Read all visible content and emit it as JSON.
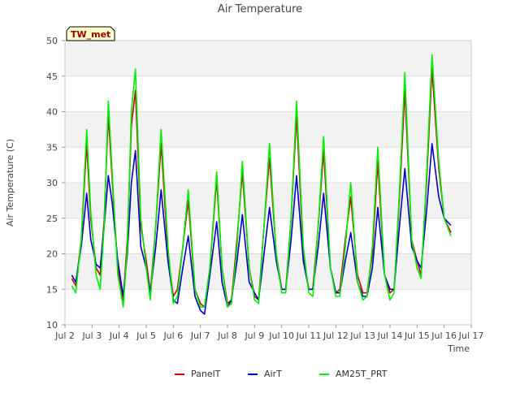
{
  "chart_data": {
    "type": "line",
    "title": "Air Temperature",
    "xlabel": "Time",
    "ylabel": "Air Temperature (C)",
    "station_label": "TW_met",
    "ylim": [
      10,
      50
    ],
    "xlim": [
      2,
      17
    ],
    "yticks": [
      10,
      15,
      20,
      25,
      30,
      35,
      40,
      45,
      50
    ],
    "xticks": [
      {
        "v": 2,
        "label": "Jul 2"
      },
      {
        "v": 3,
        "label": "Jul 3"
      },
      {
        "v": 4,
        "label": "Jul 4"
      },
      {
        "v": 5,
        "label": "Jul 5"
      },
      {
        "v": 6,
        "label": "Jul 6"
      },
      {
        "v": 7,
        "label": "Jul 7"
      },
      {
        "v": 8,
        "label": "Jul 8"
      },
      {
        "v": 9,
        "label": "Jul 9"
      },
      {
        "v": 10,
        "label": "Jul 10"
      },
      {
        "v": 11,
        "label": "Jul 11"
      },
      {
        "v": 12,
        "label": "Jul 12"
      },
      {
        "v": 13,
        "label": "Jul 13"
      },
      {
        "v": 14,
        "label": "Jul 14"
      },
      {
        "v": 15,
        "label": "Jul 15"
      },
      {
        "v": 16,
        "label": "Jul 16"
      },
      {
        "v": 17,
        "label": "Jul 17"
      }
    ],
    "grid": true,
    "legend_position": "bottom",
    "series": [
      {
        "name": "PanelT",
        "color": "#cc0000",
        "x": [
          2.25,
          2.4,
          2.6,
          2.8,
          2.95,
          3.15,
          3.3,
          3.45,
          3.6,
          3.75,
          3.95,
          4.15,
          4.3,
          4.45,
          4.6,
          4.8,
          5.0,
          5.15,
          5.35,
          5.55,
          5.8,
          6.0,
          6.15,
          6.35,
          6.55,
          6.8,
          7.0,
          7.15,
          7.35,
          7.6,
          7.8,
          8.0,
          8.15,
          8.35,
          8.55,
          8.8,
          9.0,
          9.15,
          9.35,
          9.55,
          9.8,
          10.0,
          10.15,
          10.35,
          10.55,
          10.8,
          11.0,
          11.15,
          11.35,
          11.55,
          11.8,
          12.0,
          12.15,
          12.35,
          12.55,
          12.8,
          13.0,
          13.15,
          13.35,
          13.55,
          13.8,
          14.0,
          14.15,
          14.35,
          14.55,
          14.8,
          15.0,
          15.15,
          15.35,
          15.55,
          15.8,
          16.0,
          16.25
        ],
        "values": [
          16.5,
          15.5,
          22,
          35.5,
          25,
          18,
          17,
          25,
          39.5,
          30,
          18,
          13.5,
          22,
          38,
          43,
          24,
          19,
          14.5,
          24,
          35.5,
          20,
          14,
          15,
          21,
          27.5,
          15,
          13,
          12.5,
          18,
          30.5,
          18,
          13,
          13.5,
          22,
          31.5,
          18,
          14,
          13.5,
          24,
          33.5,
          20,
          15,
          15,
          25,
          39.5,
          20,
          15,
          15,
          24,
          34.5,
          18,
          14.5,
          15,
          22,
          28,
          17,
          14.5,
          14.5,
          20,
          33,
          17,
          14.5,
          15,
          28,
          43,
          22,
          19,
          17,
          30,
          46,
          32,
          25,
          23
        ]
      },
      {
        "name": "AirT",
        "color": "#0000cc",
        "x": [
          2.25,
          2.4,
          2.6,
          2.8,
          2.95,
          3.15,
          3.3,
          3.45,
          3.6,
          3.75,
          3.95,
          4.15,
          4.3,
          4.45,
          4.6,
          4.8,
          5.0,
          5.15,
          5.35,
          5.55,
          5.8,
          6.0,
          6.15,
          6.35,
          6.55,
          6.8,
          7.0,
          7.15,
          7.35,
          7.6,
          7.8,
          8.0,
          8.15,
          8.35,
          8.55,
          8.8,
          9.0,
          9.15,
          9.35,
          9.55,
          9.8,
          10.0,
          10.15,
          10.35,
          10.55,
          10.8,
          11.0,
          11.15,
          11.35,
          11.55,
          11.8,
          12.0,
          12.15,
          12.35,
          12.55,
          12.8,
          13.0,
          13.15,
          13.35,
          13.55,
          13.8,
          14.0,
          14.15,
          14.35,
          14.55,
          14.8,
          15.0,
          15.15,
          15.35,
          15.55,
          15.8,
          16.0,
          16.25
        ],
        "values": [
          17,
          16,
          21,
          28.5,
          22,
          18.5,
          18,
          24,
          31,
          27,
          19,
          14,
          20,
          30,
          34.5,
          21,
          18,
          14.5,
          21,
          29,
          19,
          13.5,
          13,
          18,
          22.5,
          14,
          12,
          11.5,
          17,
          24.5,
          16,
          12.5,
          13.5,
          19,
          25.5,
          16,
          14.5,
          13.5,
          20,
          26.5,
          19,
          15,
          15,
          22,
          31,
          19,
          15,
          15,
          21,
          28.5,
          18,
          14.5,
          14.5,
          19,
          23,
          16,
          14,
          14,
          18,
          26.5,
          17,
          15,
          15,
          24,
          32,
          21,
          19,
          18,
          26,
          35.5,
          28,
          25,
          24
        ]
      },
      {
        "name": "AM25T_PRT",
        "color": "#00ee00",
        "x": [
          2.25,
          2.4,
          2.6,
          2.8,
          2.95,
          3.15,
          3.3,
          3.45,
          3.6,
          3.75,
          3.95,
          4.15,
          4.3,
          4.45,
          4.6,
          4.8,
          5.0,
          5.15,
          5.35,
          5.55,
          5.8,
          6.0,
          6.15,
          6.35,
          6.55,
          6.8,
          7.0,
          7.15,
          7.35,
          7.6,
          7.8,
          8.0,
          8.15,
          8.35,
          8.55,
          8.8,
          9.0,
          9.15,
          9.35,
          9.55,
          9.8,
          10.0,
          10.15,
          10.35,
          10.55,
          10.8,
          11.0,
          11.15,
          11.35,
          11.55,
          11.8,
          12.0,
          12.15,
          12.35,
          12.55,
          12.8,
          13.0,
          13.15,
          13.35,
          13.55,
          13.8,
          14.0,
          14.15,
          14.35,
          14.55,
          14.8,
          15.0,
          15.15,
          15.35,
          15.55,
          15.8,
          16.0,
          16.25
        ],
        "values": [
          15.5,
          14.5,
          22,
          37.5,
          26,
          17,
          15,
          24,
          41.5,
          31,
          17,
          12.5,
          21,
          40,
          46,
          25,
          18,
          13.5,
          24,
          37.5,
          21,
          13,
          14,
          21,
          29,
          15,
          12.5,
          12.5,
          18,
          31.5,
          18,
          12.5,
          13,
          21,
          33,
          18,
          13.5,
          13,
          24,
          35.5,
          20,
          14.5,
          14.5,
          25,
          41.5,
          21,
          14.5,
          14,
          24,
          36.5,
          18,
          14,
          14,
          21,
          30,
          16,
          13.5,
          14,
          21,
          35,
          17,
          13.5,
          14.5,
          29,
          45.5,
          22,
          18,
          16.5,
          31,
          48,
          33,
          25,
          22.5
        ]
      }
    ]
  }
}
